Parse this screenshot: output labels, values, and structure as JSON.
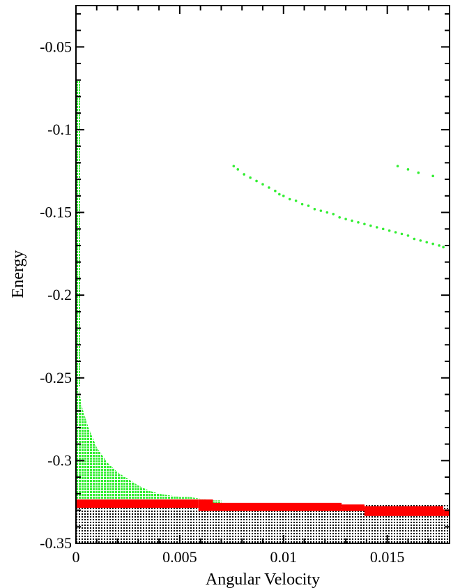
{
  "chart_data": {
    "type": "scatter",
    "title": "",
    "xlabel": "Angular Velocity",
    "ylabel": "Energy",
    "xlim": [
      0,
      0.018
    ],
    "ylim": [
      -0.35,
      -0.025
    ],
    "xticks": [
      0,
      0.005,
      0.01,
      0.015
    ],
    "xtick_labels": [
      "0",
      "0.005",
      "0.01",
      "0.015"
    ],
    "yticks": [
      -0.35,
      -0.3,
      -0.25,
      -0.2,
      -0.15,
      -0.1,
      -0.05
    ],
    "ytick_labels": [
      "-0.35",
      "-0.3",
      "-0.25",
      "-0.2",
      "-0.15",
      "-0.1",
      "-0.05"
    ],
    "grid": false,
    "legend": "none",
    "colors": {
      "green": "#33ee33",
      "red": "#ff0000",
      "black": "#000000"
    },
    "series": [
      {
        "color": "green",
        "marker": "dot",
        "x": [
          0.0076,
          0.0078,
          0.0081,
          0.0084,
          0.0087,
          0.009,
          0.0093,
          0.0096,
          0.0098,
          0.01,
          0.0103,
          0.0106,
          0.0109,
          0.0112,
          0.0115,
          0.0118,
          0.0121,
          0.0124,
          0.0127,
          0.013,
          0.0133,
          0.0136,
          0.0139,
          0.0142,
          0.0145,
          0.0148,
          0.0151,
          0.0154,
          0.0157,
          0.016,
          0.0163,
          0.0166,
          0.0169,
          0.0172,
          0.0175,
          0.0177
        ],
        "y": [
          -0.122,
          -0.124,
          -0.127,
          -0.129,
          -0.131,
          -0.133,
          -0.135,
          -0.137,
          -0.139,
          -0.14,
          -0.142,
          -0.143,
          -0.145,
          -0.146,
          -0.148,
          -0.149,
          -0.15,
          -0.151,
          -0.153,
          -0.154,
          -0.155,
          -0.156,
          -0.157,
          -0.158,
          -0.159,
          -0.16,
          -0.161,
          -0.162,
          -0.163,
          -0.164,
          -0.166,
          -0.167,
          -0.168,
          -0.169,
          -0.17,
          -0.171
        ]
      },
      {
        "color": "green",
        "marker": "dot",
        "x": [
          0.0155,
          0.016,
          0.0165,
          0.0172
        ],
        "y": [
          -0.122,
          -0.124,
          -0.126,
          -0.128
        ]
      }
    ],
    "regions": [
      {
        "color": "green",
        "pattern": "dots",
        "description": "dense column near zero",
        "x": [
          0,
          0.0002
        ],
        "y": [
          -0.255,
          -0.07
        ]
      },
      {
        "color": "green",
        "pattern": "dots",
        "description": "filled area under decaying curve",
        "boundary_x": [
          0.0001,
          0.0003,
          0.0006,
          0.001,
          0.0015,
          0.002,
          0.0025,
          0.003,
          0.0035,
          0.004,
          0.0045,
          0.005,
          0.0055,
          0.006,
          0.0065,
          0.007
        ],
        "boundary_y": [
          -0.254,
          -0.268,
          -0.28,
          -0.292,
          -0.301,
          -0.307,
          -0.311,
          -0.315,
          -0.318,
          -0.32,
          -0.321,
          -0.322,
          -0.322,
          -0.323,
          -0.324,
          -0.324
        ],
        "floor_y": -0.327
      },
      {
        "color": "black",
        "pattern": "dots",
        "description": "dense band at bottom",
        "x": [
          0,
          0.018
        ],
        "y": [
          -0.35,
          -0.326
        ]
      }
    ],
    "bands": [
      {
        "color": "red",
        "x": [
          0,
          0.0059
        ],
        "y": [
          -0.3285,
          -0.3235
        ]
      },
      {
        "color": "red",
        "x": [
          0.0059,
          0.0066
        ],
        "y": [
          -0.3305,
          -0.3235
        ]
      },
      {
        "color": "red",
        "x": [
          0.0066,
          0.0128
        ],
        "y": [
          -0.3305,
          -0.3255
        ]
      },
      {
        "color": "red",
        "x": [
          0.0128,
          0.0139
        ],
        "y": [
          -0.3305,
          -0.3265
        ]
      },
      {
        "color": "red",
        "x": [
          0.0139,
          0.0177
        ],
        "y": [
          -0.3335,
          -0.3275
        ]
      },
      {
        "color": "red",
        "x": [
          0.0177,
          0.018
        ],
        "y": [
          -0.3335,
          -0.3295
        ]
      }
    ]
  }
}
